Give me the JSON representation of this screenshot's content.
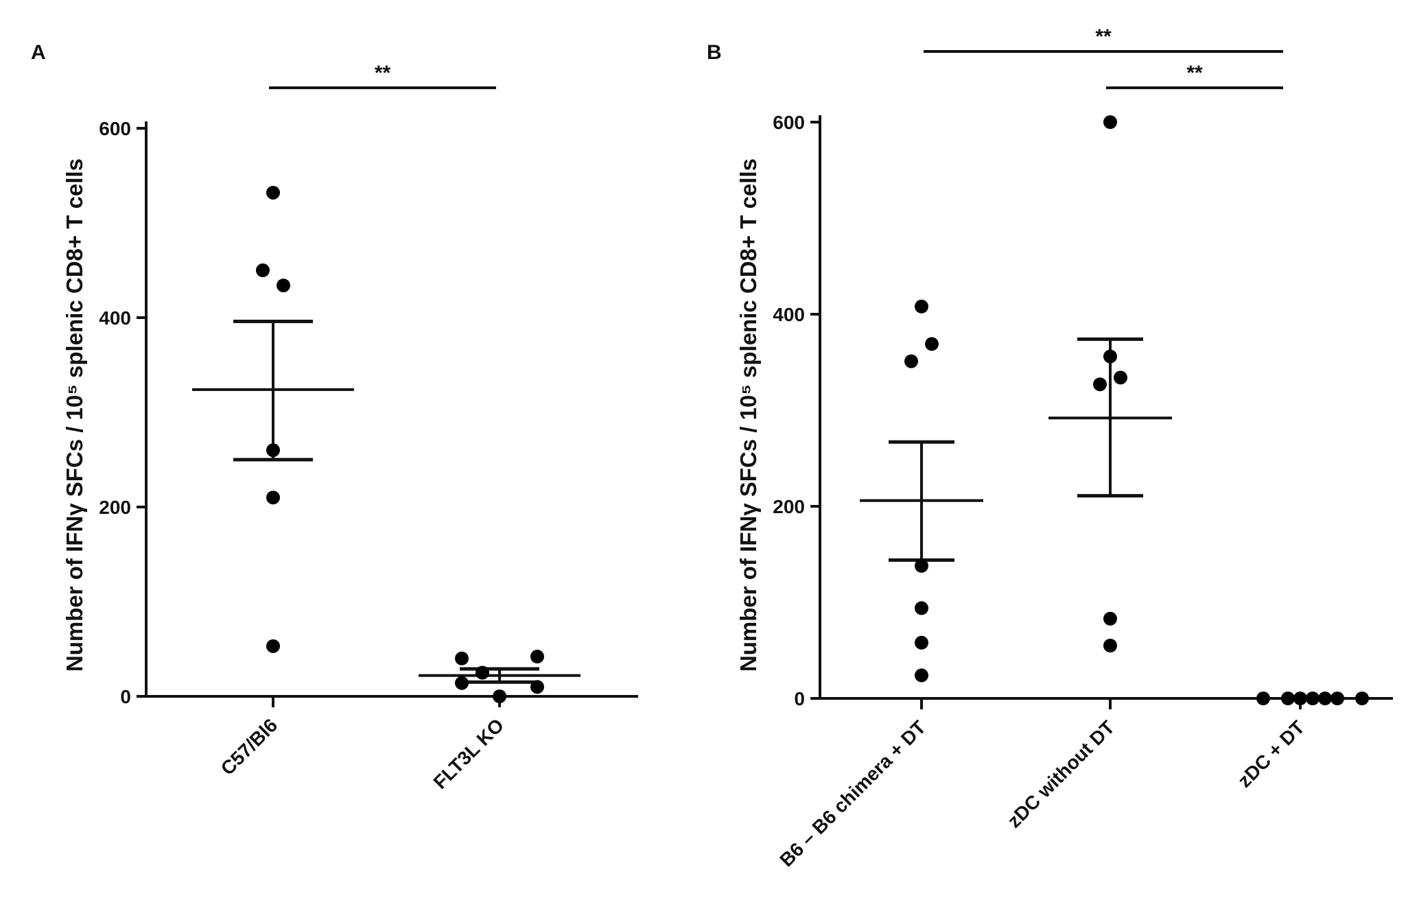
{
  "chart_data": [
    {
      "type": "scatter",
      "panel": "A",
      "ylabel": "Number of IFNγ SFCs / 10⁵ splenic CD8+ T cells",
      "xlabel": "",
      "ylim": [
        0,
        600
      ],
      "yticks": [
        0,
        200,
        400,
        600
      ],
      "categories": [
        "C57/Bl6",
        "FLT3L KO"
      ],
      "groups": [
        {
          "name": "C57/Bl6",
          "values": [
            532,
            450,
            434,
            260,
            210,
            53
          ],
          "mean": 324,
          "sem_upper": 396,
          "sem_lower": 250
        },
        {
          "name": "FLT3L KO",
          "values": [
            40,
            42,
            25,
            14,
            10,
            0
          ],
          "mean": 22,
          "sem_upper": 29,
          "sem_lower": 15
        }
      ],
      "significance": [
        {
          "from": "C57/Bl6",
          "to": "FLT3L KO",
          "label": "**"
        }
      ]
    },
    {
      "type": "scatter",
      "panel": "B",
      "ylabel": "Number of IFNγ SFCs / 10⁵ splenic CD8+ T cells",
      "xlabel": "",
      "ylim": [
        0,
        600
      ],
      "yticks": [
        0,
        200,
        400,
        600
      ],
      "categories": [
        "B6 – B6 chimera + DT",
        "zDC without DT",
        "zDC + DT"
      ],
      "groups": [
        {
          "name": "B6 – B6 chimera + DT",
          "values": [
            408,
            369,
            351,
            138,
            94,
            58,
            24
          ],
          "mean": 206,
          "sem_upper": 267,
          "sem_lower": 144
        },
        {
          "name": "zDC without DT",
          "values": [
            600,
            356,
            334,
            327,
            83,
            55
          ],
          "mean": 292,
          "sem_upper": 374,
          "sem_lower": 211
        },
        {
          "name": "zDC + DT",
          "values": [
            0,
            0,
            0,
            0,
            0,
            0,
            0
          ],
          "mean": 0,
          "sem_upper": 0,
          "sem_lower": 0
        }
      ],
      "significance": [
        {
          "from": "B6 – B6 chimera + DT",
          "to": "zDC + DT",
          "label": "**"
        },
        {
          "from": "zDC without DT",
          "to": "zDC + DT",
          "label": "**"
        }
      ]
    }
  ]
}
